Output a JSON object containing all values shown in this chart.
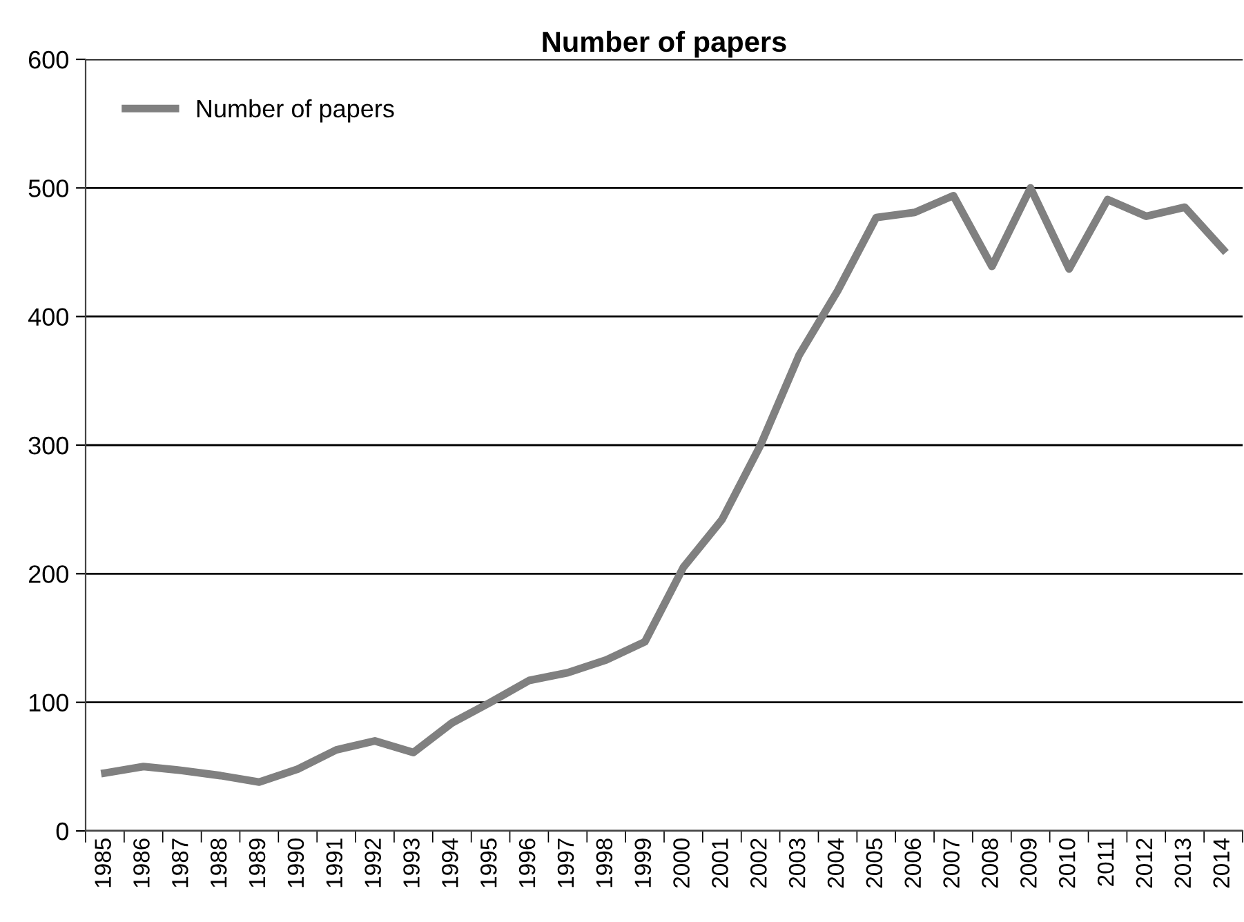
{
  "chart_data": {
    "type": "line",
    "title": "Number of papers",
    "categories": [
      "1985",
      "1986",
      "1987",
      "1988",
      "1989",
      "1990",
      "1991",
      "1992",
      "1993",
      "1994",
      "1995",
      "1996",
      "1997",
      "1998",
      "1999",
      "2000",
      "2001",
      "2002",
      "2003",
      "2004",
      "2005",
      "2006",
      "2007",
      "2008",
      "2009",
      "2010",
      "2011",
      "2012",
      "2013",
      "2014"
    ],
    "series": [
      {
        "name": "Number of papers",
        "color": "#808080",
        "values": [
          45,
          50,
          47,
          43,
          38,
          48,
          63,
          70,
          61,
          84,
          100,
          117,
          123,
          133,
          147,
          205,
          242,
          300,
          370,
          420,
          477,
          481,
          494,
          439,
          500,
          437,
          491,
          478,
          485,
          452
        ]
      }
    ],
    "ylim": [
      0,
      600
    ],
    "yticks": [
      0,
      100,
      200,
      300,
      400,
      500,
      600
    ],
    "grid": "y",
    "legend": "top left",
    "marker": "none",
    "line_style": "solid"
  }
}
